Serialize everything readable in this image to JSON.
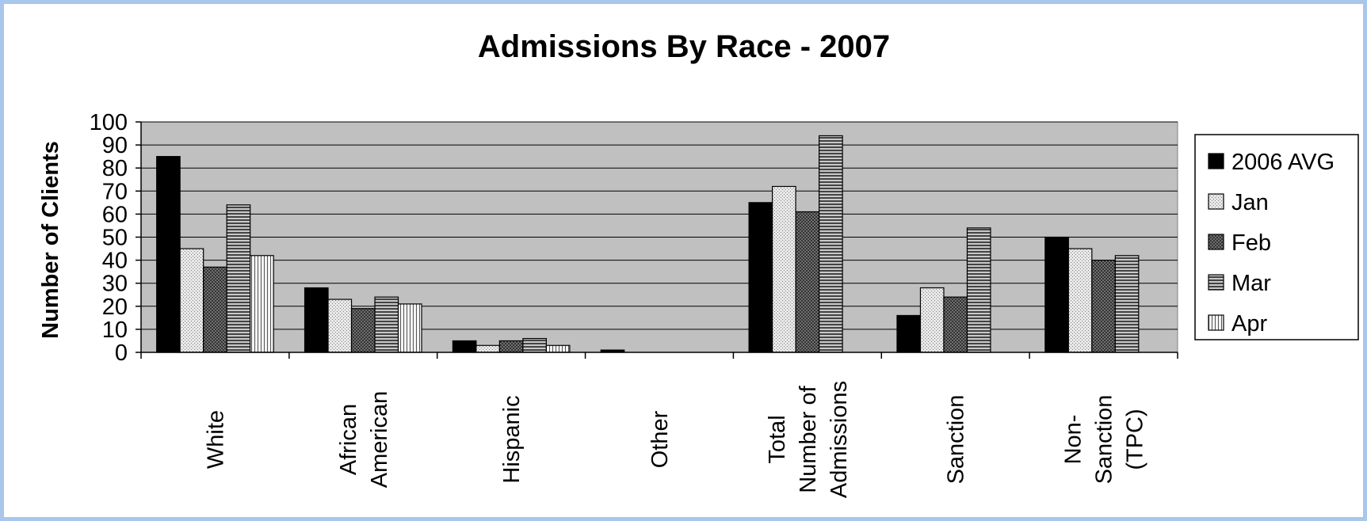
{
  "chart_data": {
    "type": "bar",
    "title": "Admissions By Race - 2007",
    "ylabel": "Number of Clients",
    "xlabel": "",
    "ylim": [
      0,
      100
    ],
    "ytick_step": 10,
    "grid": true,
    "legend_position": "right",
    "categories": [
      [
        "White"
      ],
      [
        "African",
        "American"
      ],
      [
        "Hispanic"
      ],
      [
        "Other"
      ],
      [
        "Total",
        "Number of",
        "Admissions"
      ],
      [
        "Sanction"
      ],
      [
        "Non-",
        "Sanction",
        "(TPC)"
      ]
    ],
    "series": [
      {
        "name": "2006 AVG",
        "values": [
          85,
          28,
          5,
          1,
          65,
          16,
          50
        ]
      },
      {
        "name": "Jan",
        "values": [
          45,
          23,
          3,
          0,
          72,
          28,
          45
        ]
      },
      {
        "name": "Feb",
        "values": [
          37,
          19,
          5,
          0,
          61,
          24,
          40
        ]
      },
      {
        "name": "Mar",
        "values": [
          64,
          24,
          6,
          0,
          94,
          54,
          42
        ]
      },
      {
        "name": "Apr",
        "values": [
          42,
          21,
          3,
          0,
          null,
          null,
          null
        ]
      }
    ],
    "colors": {
      "plot_background": "#c0c0c0",
      "gridline": "#000000",
      "frame_border": "#a9c6ec"
    },
    "series_fills": [
      "solid-black",
      "light-dots",
      "dark-dots",
      "horizontal-stripes",
      "vertical-stripes"
    ]
  }
}
